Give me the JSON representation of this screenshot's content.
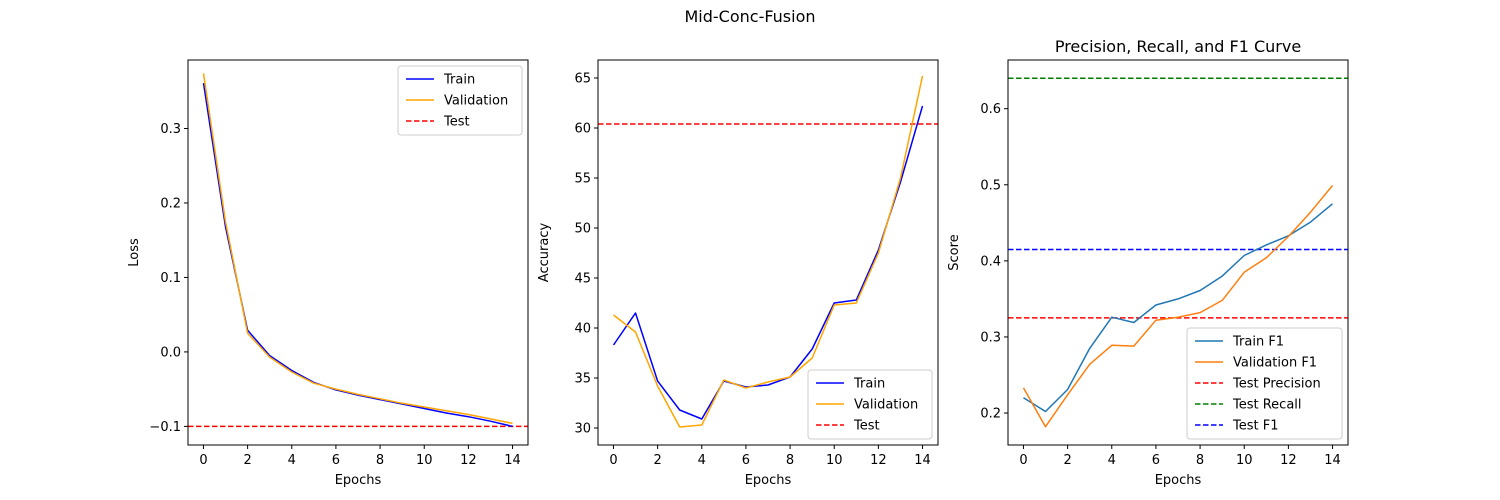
{
  "suptitle": "Mid-Conc-Fusion",
  "chart_data": [
    {
      "type": "line",
      "title": "",
      "xlabel": "Epochs",
      "ylabel": "Loss",
      "xlim": [
        -0.7,
        14.7
      ],
      "ylim": [
        -0.125,
        0.392
      ],
      "xticks": [
        0,
        2,
        4,
        6,
        8,
        10,
        12,
        14
      ],
      "yticks": [
        -0.1,
        0.0,
        0.1,
        0.2,
        0.3
      ],
      "ytick_labels": [
        "−0.1",
        "0.0",
        "0.1",
        "0.2",
        "0.3"
      ],
      "legend_position": "upper right",
      "x": [
        0,
        1,
        2,
        3,
        4,
        5,
        6,
        7,
        8,
        9,
        10,
        11,
        12,
        13,
        14
      ],
      "series": [
        {
          "name": "Train",
          "color": "#0000ff",
          "dash": "solid",
          "values": [
            0.361,
            0.168,
            0.029,
            -0.005,
            -0.025,
            -0.041,
            -0.051,
            -0.058,
            -0.064,
            -0.07,
            -0.076,
            -0.082,
            -0.087,
            -0.093,
            -0.1
          ]
        },
        {
          "name": "Validation",
          "color": "#ffa500",
          "dash": "solid",
          "values": [
            0.374,
            0.175,
            0.025,
            -0.007,
            -0.027,
            -0.042,
            -0.05,
            -0.057,
            -0.063,
            -0.069,
            -0.074,
            -0.079,
            -0.084,
            -0.09,
            -0.096
          ]
        }
      ],
      "hlines": [
        {
          "name": "Test",
          "color": "#ff0000",
          "value": -0.1
        }
      ]
    },
    {
      "type": "line",
      "title": "",
      "xlabel": "Epochs",
      "ylabel": "Accuracy",
      "xlim": [
        -0.7,
        14.7
      ],
      "ylim": [
        28.3,
        66.8
      ],
      "xticks": [
        0,
        2,
        4,
        6,
        8,
        10,
        12,
        14
      ],
      "yticks": [
        30,
        35,
        40,
        45,
        50,
        55,
        60,
        65
      ],
      "ytick_labels": [
        "30",
        "35",
        "40",
        "45",
        "50",
        "55",
        "60",
        "65"
      ],
      "legend_position": "lower right",
      "x": [
        0,
        1,
        2,
        3,
        4,
        5,
        6,
        7,
        8,
        9,
        10,
        11,
        12,
        13,
        14
      ],
      "series": [
        {
          "name": "Train",
          "color": "#0000ff",
          "dash": "solid",
          "values": [
            38.3,
            41.5,
            34.7,
            31.8,
            30.9,
            34.7,
            34.1,
            34.3,
            35.1,
            37.9,
            42.5,
            42.8,
            47.8,
            54.6,
            62.2
          ]
        },
        {
          "name": "Validation",
          "color": "#ffa500",
          "dash": "solid",
          "values": [
            41.3,
            39.6,
            34.2,
            30.1,
            30.3,
            34.8,
            34.0,
            34.6,
            35.1,
            37.0,
            42.3,
            42.5,
            47.5,
            55.0,
            65.2
          ]
        }
      ],
      "hlines": [
        {
          "name": "Test",
          "color": "#ff0000",
          "value": 60.4
        }
      ]
    },
    {
      "type": "line",
      "title": "Precision, Recall, and F1 Curve",
      "xlabel": "Epochs",
      "ylabel": "Score",
      "xlim": [
        -0.7,
        14.7
      ],
      "ylim": [
        0.158,
        0.664
      ],
      "xticks": [
        0,
        2,
        4,
        6,
        8,
        10,
        12,
        14
      ],
      "yticks": [
        0.2,
        0.3,
        0.4,
        0.5,
        0.6
      ],
      "ytick_labels": [
        "0.2",
        "0.3",
        "0.4",
        "0.5",
        "0.6"
      ],
      "legend_position": "lower right",
      "x": [
        0,
        1,
        2,
        3,
        4,
        5,
        6,
        7,
        8,
        9,
        10,
        11,
        12,
        13,
        14
      ],
      "series": [
        {
          "name": "Train F1",
          "color": "#1f77b4",
          "dash": "solid",
          "values": [
            0.22,
            0.202,
            0.231,
            0.285,
            0.326,
            0.319,
            0.342,
            0.35,
            0.361,
            0.38,
            0.407,
            0.421,
            0.433,
            0.451,
            0.475
          ]
        },
        {
          "name": "Validation F1",
          "color": "#ff7f0e",
          "dash": "solid",
          "values": [
            0.233,
            0.182,
            0.224,
            0.264,
            0.289,
            0.288,
            0.322,
            0.326,
            0.332,
            0.348,
            0.385,
            0.404,
            0.432,
            0.464,
            0.499
          ]
        }
      ],
      "hlines": [
        {
          "name": "Test Precision",
          "color": "#ff0000",
          "value": 0.325
        },
        {
          "name": "Test Recall",
          "color": "#008000",
          "value": 0.64
        },
        {
          "name": "Test F1",
          "color": "#0000ff",
          "value": 0.415
        }
      ]
    }
  ]
}
